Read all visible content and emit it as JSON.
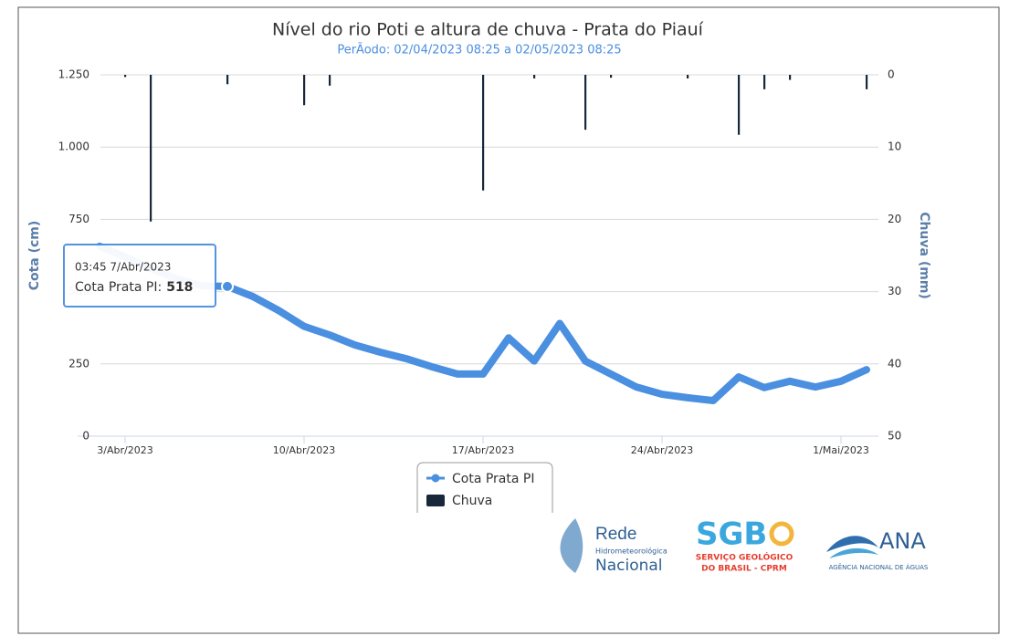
{
  "chart_data": {
    "type": "line_bar",
    "title": "Nível do rio Poti e altura de chuva - Prata do Piauí",
    "subtitle": "PerÃodo: 02/04/2023 08:25 a 02/05/2023 08:25",
    "y_label": "Cota (cm)",
    "y2_label": "Chuva (mm)",
    "x": [
      "2023-04-02",
      "2023-04-03",
      "2023-04-04",
      "2023-04-05",
      "2023-04-06",
      "2023-04-07",
      "2023-04-08",
      "2023-04-09",
      "2023-04-10",
      "2023-04-11",
      "2023-04-12",
      "2023-04-13",
      "2023-04-14",
      "2023-04-15",
      "2023-04-16",
      "2023-04-17",
      "2023-04-18",
      "2023-04-19",
      "2023-04-20",
      "2023-04-21",
      "2023-04-22",
      "2023-04-23",
      "2023-04-24",
      "2023-04-25",
      "2023-04-26",
      "2023-04-27",
      "2023-04-28",
      "2023-04-29",
      "2023-04-30",
      "2023-05-01",
      "2023-05-02"
    ],
    "xlim": [
      "2023-04-02",
      "2023-05-02"
    ],
    "xticks": [
      {
        "value": "2023-04-03",
        "label": "3/Abr/2023"
      },
      {
        "value": "2023-04-10",
        "label": "10/Abr/2023"
      },
      {
        "value": "2023-04-17",
        "label": "17/Abr/2023"
      },
      {
        "value": "2023-04-24",
        "label": "24/Abr/2023"
      },
      {
        "value": "2023-05-01",
        "label": "1/Mai/2023"
      }
    ],
    "ylim": [
      0,
      1250
    ],
    "yticks": [
      0,
      250,
      500,
      750,
      {
        "value": 1000,
        "label": "1.000"
      },
      {
        "value": 1250,
        "label": "1.250"
      }
    ],
    "y2lim": [
      0,
      50
    ],
    "y2ticks": [
      0,
      10,
      20,
      30,
      40,
      50
    ],
    "y2_reversed": true,
    "grid": true,
    "series": [
      {
        "name": "Cota Prata PI",
        "type": "line",
        "color": "#4a8fe0",
        "values": [
          657,
          620,
          580,
          545,
          520,
          518,
          483,
          435,
          380,
          350,
          315,
          290,
          268,
          240,
          215,
          215,
          340,
          260,
          390,
          260,
          215,
          170,
          145,
          133,
          123,
          205,
          168,
          190,
          170,
          190,
          230
        ]
      },
      {
        "name": "Chuva",
        "type": "bar",
        "axis": "y2",
        "color": "#16283a",
        "values": [
          0,
          0.3,
          20.3,
          0,
          0,
          1.3,
          0,
          0,
          4.2,
          1.5,
          0,
          0,
          0,
          0,
          0,
          16,
          0,
          0.5,
          0,
          7.6,
          0.4,
          0,
          0,
          0.5,
          0,
          8.3,
          2,
          0.7,
          0,
          0,
          2
        ]
      }
    ],
    "tooltip": {
      "date": "03:45 7/Abr/2023",
      "series": "Cota Prata PI:",
      "x": "2023-04-07",
      "value": 518
    }
  },
  "logos": {
    "rede": [
      "Rede",
      "Hidrometeorológica",
      "Nacional"
    ],
    "sgb": [
      "SGB",
      "SERVIÇO GEOLÓGICO",
      "DO BRASIL - CPRM"
    ],
    "ana": [
      "ANA",
      "AGÊNCIA NACIONAL DE ÁGUAS"
    ]
  }
}
